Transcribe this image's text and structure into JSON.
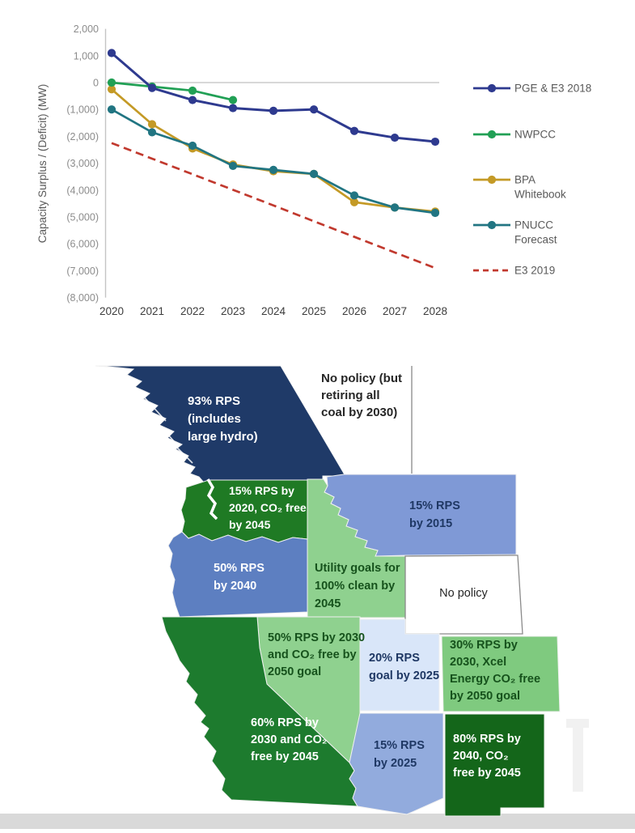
{
  "chart_data": {
    "type": "line",
    "title": "",
    "xlabel": "",
    "ylabel": "Capacity Surplus / (Deficit) (MW)",
    "x": [
      2020,
      2021,
      2022,
      2023,
      2024,
      2025,
      2026,
      2027,
      2028
    ],
    "x_tick_labels": [
      "2020",
      "2021",
      "2022",
      "2023",
      "2024",
      "2025",
      "2026",
      "2027",
      "2028"
    ],
    "y_tick_values": [
      2000,
      1000,
      0,
      -1000,
      -2000,
      -3000,
      -4000,
      -5000,
      -6000,
      -7000,
      -8000
    ],
    "y_tick_labels": [
      "2,000",
      "1,000",
      "0",
      "(1,000)",
      "(2,000)",
      "(3,000)",
      "(4,000)",
      "(5,000)",
      "(6,000)",
      "(7,000)",
      "(8,000)"
    ],
    "ylim": [
      -8000,
      2000
    ],
    "zero_gridline": true,
    "legend_position": "right",
    "series": [
      {
        "name": "PGE & E3 2018",
        "color": "#2e3a8f",
        "style": "solid-dot",
        "values": [
          1100,
          -200,
          -650,
          -950,
          -1050,
          -1000,
          -1800,
          -2050,
          -2200
        ]
      },
      {
        "name": "NWPCC",
        "color": "#21a055",
        "style": "solid-dot",
        "values": [
          0,
          -150,
          -300,
          -650,
          null,
          null,
          null,
          null,
          null
        ]
      },
      {
        "name": "BPA Whitebook",
        "legend_lines": [
          "BPA",
          "Whitebook"
        ],
        "color": "#c49a26",
        "style": "solid-dot",
        "values": [
          -250,
          -1550,
          -2450,
          -3050,
          -3300,
          -3400,
          -4450,
          -4650,
          -4800
        ]
      },
      {
        "name": "PNUCC Forecast",
        "legend_lines": [
          "PNUCC",
          "Forecast"
        ],
        "color": "#217582",
        "style": "solid-dot",
        "values": [
          -1000,
          -1850,
          -2350,
          -3100,
          -3250,
          -3400,
          -4200,
          -4650,
          -4850
        ]
      },
      {
        "name": "E3 2019",
        "color": "#c1392e",
        "style": "dashed",
        "values": [
          -2250,
          -2830,
          -3410,
          -3990,
          -4570,
          -5160,
          -5740,
          -6320,
          -6900
        ]
      }
    ]
  },
  "map": {
    "regions": [
      {
        "id": "british-columbia",
        "name": "British Columbia",
        "color": "#1f3a68",
        "text_color": "#ffffff",
        "label_lines": [
          "93% RPS",
          "(includes",
          "large hydro)"
        ]
      },
      {
        "id": "alberta",
        "name": "Alberta",
        "color": "#ffffff",
        "text_color": "#262626",
        "label_lines": [
          "No policy (but",
          "retiring all",
          "coal by 2030)"
        ]
      },
      {
        "id": "washington",
        "name": "Washington",
        "color": "#1f7a24",
        "text_color": "#ffffff",
        "label_lines": [
          "15% RPS by",
          "2020, CO₂ free",
          "by 2045"
        ]
      },
      {
        "id": "montana",
        "name": "Montana",
        "color": "#7f99d6",
        "text_color": "#1f3864",
        "label_lines": [
          "15% RPS",
          "by 2015"
        ]
      },
      {
        "id": "oregon",
        "name": "Oregon",
        "color": "#5d7fc1",
        "text_color": "#ffffff",
        "label_lines": [
          "50% RPS",
          "by 2040"
        ]
      },
      {
        "id": "idaho",
        "name": "Idaho",
        "color": "#8fd18f",
        "text_color": "#16521c",
        "label_lines": [
          "Utility goals for",
          "100% clean by",
          "2045"
        ]
      },
      {
        "id": "wyoming",
        "name": "Wyoming",
        "color": "#ffffff",
        "text_color": "#262626",
        "label_lines": [
          "No policy"
        ]
      },
      {
        "id": "nevada",
        "name": "Nevada",
        "color": "#8fd18f",
        "text_color": "#16521c",
        "label_lines": [
          "50% RPS by 2030",
          "and CO₂ free by",
          "2050 goal"
        ]
      },
      {
        "id": "utah",
        "name": "Utah",
        "color": "#d9e6f9",
        "text_color": "#1f3864",
        "label_lines": [
          "20% RPS",
          "goal by 2025"
        ]
      },
      {
        "id": "colorado",
        "name": "Colorado",
        "color": "#7fca7f",
        "text_color": "#16521c",
        "label_lines": [
          "30% RPS by",
          "2030, Xcel",
          "Energy CO₂ free",
          "by 2050 goal"
        ]
      },
      {
        "id": "california",
        "name": "California",
        "color": "#1d7b2e",
        "text_color": "#ffffff",
        "label_lines": [
          "60% RPS by",
          "2030 and CO₂",
          "free by 2045"
        ]
      },
      {
        "id": "arizona",
        "name": "Arizona",
        "color": "#92abdd",
        "text_color": "#1f3864",
        "label_lines": [
          "15% RPS",
          "by 2025"
        ]
      },
      {
        "id": "new-mexico",
        "name": "New Mexico",
        "color": "#14661a",
        "text_color": "#ffffff",
        "label_lines": [
          "80% RPS by",
          "2040, CO₂",
          "free by 2045"
        ]
      }
    ]
  }
}
